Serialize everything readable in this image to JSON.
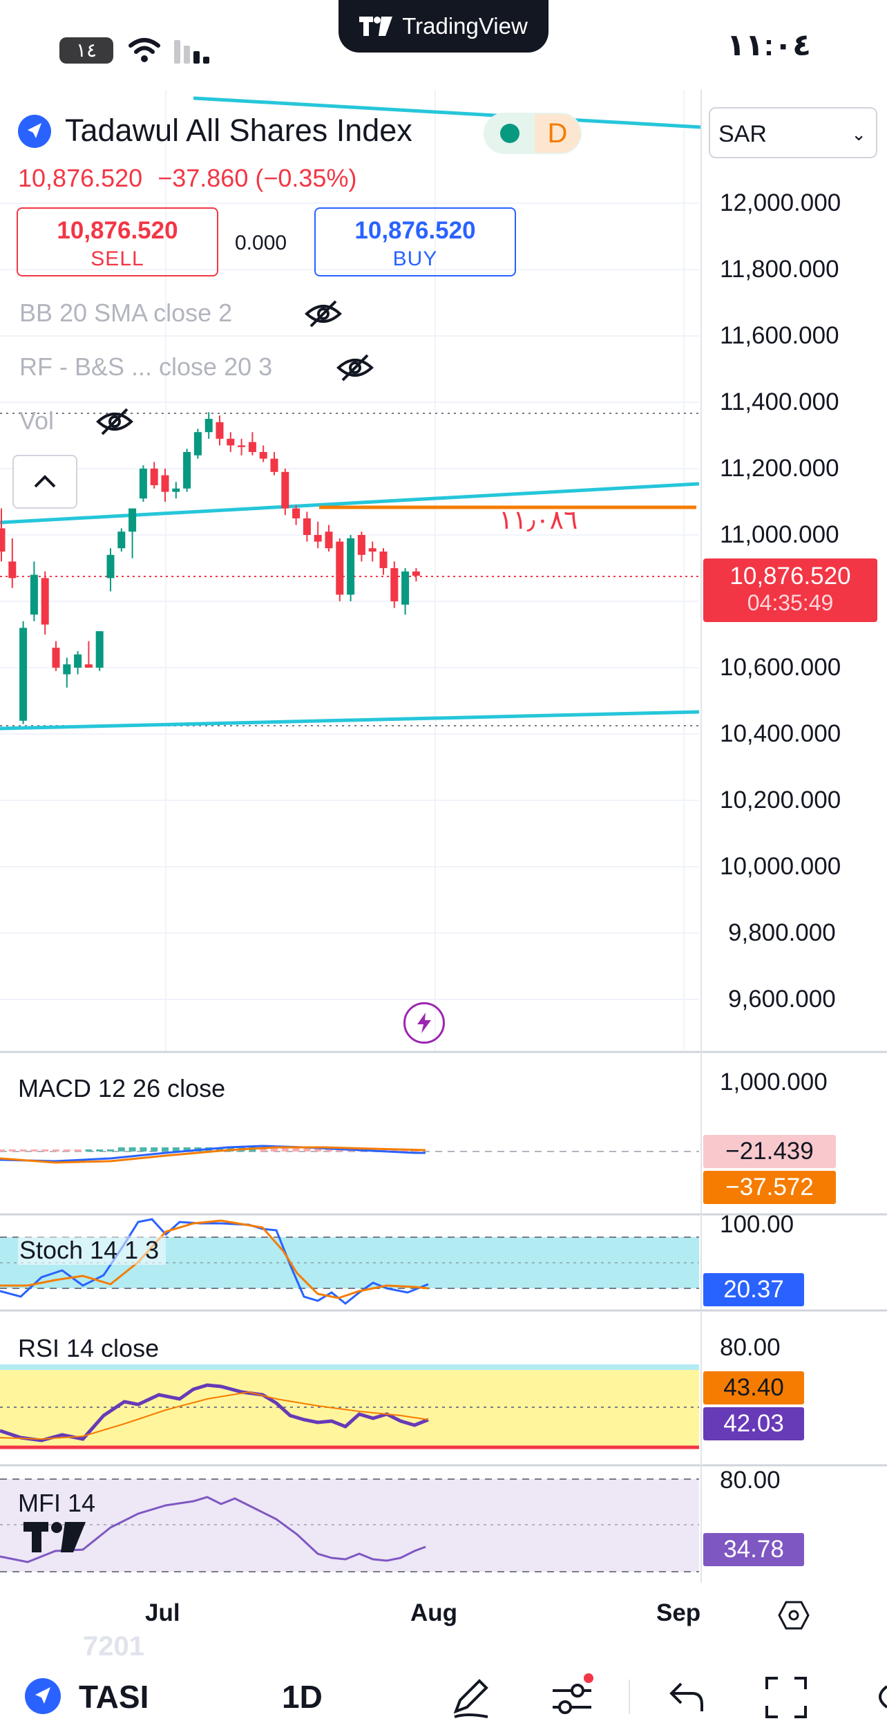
{
  "status_bar": {
    "brand": "TradingView",
    "time": "١١:٠٤",
    "battery": "١٤"
  },
  "header": {
    "symbol_name": "Tadawul All Shares Index",
    "status_letter": "D",
    "currency": "SAR",
    "last_price": "10,876.520",
    "change": "−37.860",
    "change_pct": "(−0.35%)",
    "sell_price": "10,876.520",
    "sell_label": "SELL",
    "spread": "0.000",
    "buy_price": "10,876.520",
    "buy_label": "BUY"
  },
  "indicators_overlay": [
    {
      "label": "BB 20 SMA close 2"
    },
    {
      "label": "RF - B&S ...  close 20 3"
    },
    {
      "label": "Vol"
    }
  ],
  "price_axis": {
    "labels": [
      "12,000.000",
      "11,800.000",
      "11,600.000",
      "11,400.000",
      "11,200.000",
      "11,000.000",
      "10,600.000",
      "10,400.000",
      "10,200.000",
      "10,000.000",
      "9,800.000",
      "9,600.000"
    ],
    "current_price": "10,876.520",
    "countdown": "04:35:49"
  },
  "annotation": {
    "level_text": "١١٫٠٨٦"
  },
  "panes": {
    "macd": {
      "label": "MACD 12 26 close",
      "axis": "1,000.000",
      "tag1": "−21.439",
      "tag2": "−37.572"
    },
    "stoch": {
      "label": "Stoch 14 1 3",
      "axis": "100.00",
      "tag": "20.37"
    },
    "rsi": {
      "label": "RSI 14 close",
      "axis": "80.00",
      "tag1": "43.40",
      "tag2": "42.03"
    },
    "mfi": {
      "label": "MFI 14",
      "axis": "80.00",
      "tag": "34.78",
      "watermark": "7201"
    }
  },
  "time_axis": {
    "labels": [
      "Jul",
      "Aug",
      "Sep"
    ]
  },
  "bottom_bar": {
    "symbol": "TASI",
    "interval": "1D"
  },
  "colors": {
    "up": "#089981",
    "down": "#f23645",
    "trendline": "#26c6da",
    "level": "#f57c00",
    "brand": "#2962ff"
  },
  "chart_data": {
    "type": "candlestick",
    "y_range": [
      9500,
      12100
    ],
    "candles": [
      {
        "o": 11020,
        "h": 11080,
        "l": 10920,
        "c": 10950
      },
      {
        "o": 10920,
        "h": 10990,
        "l": 10840,
        "c": 10870
      },
      {
        "o": 10440,
        "h": 10740,
        "l": 10430,
        "c": 10720
      },
      {
        "o": 10760,
        "h": 10920,
        "l": 10740,
        "c": 10880
      },
      {
        "o": 10870,
        "h": 10890,
        "l": 10700,
        "c": 10730
      },
      {
        "o": 10660,
        "h": 10680,
        "l": 10590,
        "c": 10600
      },
      {
        "o": 10580,
        "h": 10630,
        "l": 10540,
        "c": 10610
      },
      {
        "o": 10600,
        "h": 10650,
        "l": 10580,
        "c": 10640
      },
      {
        "o": 10610,
        "h": 10680,
        "l": 10600,
        "c": 10600
      },
      {
        "o": 10600,
        "h": 10710,
        "l": 10590,
        "c": 10710
      },
      {
        "o": 10870,
        "h": 10960,
        "l": 10830,
        "c": 10940
      },
      {
        "o": 10960,
        "h": 11020,
        "l": 10950,
        "c": 11010
      },
      {
        "o": 11010,
        "h": 11080,
        "l": 10930,
        "c": 11080
      },
      {
        "o": 11110,
        "h": 11210,
        "l": 11100,
        "c": 11200
      },
      {
        "o": 11200,
        "h": 11220,
        "l": 11140,
        "c": 11150
      },
      {
        "o": 11180,
        "h": 11200,
        "l": 11100,
        "c": 11130
      },
      {
        "o": 11130,
        "h": 11160,
        "l": 11110,
        "c": 11140
      },
      {
        "o": 11140,
        "h": 11260,
        "l": 11130,
        "c": 11250
      },
      {
        "o": 11240,
        "h": 11320,
        "l": 11230,
        "c": 11310
      },
      {
        "o": 11310,
        "h": 11370,
        "l": 11290,
        "c": 11350
      },
      {
        "o": 11340,
        "h": 11360,
        "l": 11270,
        "c": 11290
      },
      {
        "o": 11290,
        "h": 11310,
        "l": 11250,
        "c": 11270
      },
      {
        "o": 11270,
        "h": 11290,
        "l": 11240,
        "c": 11265
      },
      {
        "o": 11280,
        "h": 11310,
        "l": 11240,
        "c": 11250
      },
      {
        "o": 11250,
        "h": 11270,
        "l": 11220,
        "c": 11230
      },
      {
        "o": 11230,
        "h": 11250,
        "l": 11180,
        "c": 11190
      },
      {
        "o": 11190,
        "h": 11200,
        "l": 11060,
        "c": 11080
      },
      {
        "o": 11080,
        "h": 11090,
        "l": 11030,
        "c": 11050
      },
      {
        "o": 11050,
        "h": 11070,
        "l": 10980,
        "c": 11000
      },
      {
        "o": 11000,
        "h": 11040,
        "l": 10960,
        "c": 10980
      },
      {
        "o": 11010,
        "h": 11030,
        "l": 10950,
        "c": 10960
      },
      {
        "o": 10980,
        "h": 10990,
        "l": 10800,
        "c": 10820
      },
      {
        "o": 10820,
        "h": 11000,
        "l": 10800,
        "c": 10990
      },
      {
        "o": 11000,
        "h": 11010,
        "l": 10920,
        "c": 10940
      },
      {
        "o": 10960,
        "h": 10980,
        "l": 10920,
        "c": 10950
      },
      {
        "o": 10950,
        "h": 10960,
        "l": 10880,
        "c": 10900
      },
      {
        "o": 10900,
        "h": 10920,
        "l": 10780,
        "c": 10800
      },
      {
        "o": 10790,
        "h": 10900,
        "l": 10760,
        "c": 10890
      },
      {
        "o": 10890,
        "h": 10900,
        "l": 10860,
        "c": 10877
      }
    ]
  }
}
